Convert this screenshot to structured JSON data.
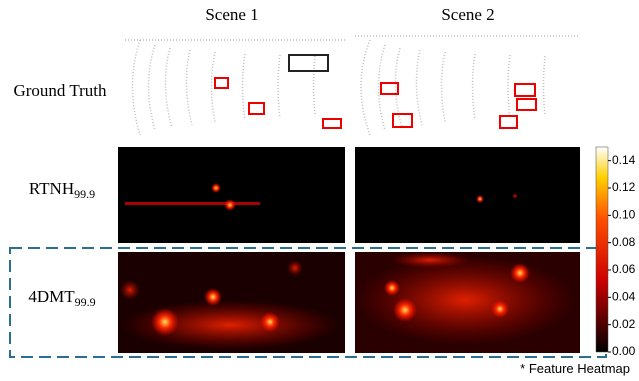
{
  "columns": [
    "Scene 1",
    "Scene 2"
  ],
  "rows": [
    {
      "label": "Ground Truth"
    },
    {
      "label": "RTNH",
      "subscript": "99.9"
    },
    {
      "label": "4DMT",
      "subscript": "99.9"
    }
  ],
  "colorbar": {
    "lim": [
      0,
      0.15
    ],
    "ticks": [
      {
        "value": 0,
        "label": "0.00"
      },
      {
        "value": 0.02,
        "label": "0.02"
      },
      {
        "value": 0.04,
        "label": "0.04"
      },
      {
        "value": 0.06,
        "label": "0.06"
      },
      {
        "value": 0.08,
        "label": "0.08"
      },
      {
        "value": 0.1,
        "label": "0.10"
      },
      {
        "value": 0.12,
        "label": "0.12"
      },
      {
        "value": 0.14,
        "label": "0.14"
      }
    ]
  },
  "note": "* Feature Heatmap"
}
